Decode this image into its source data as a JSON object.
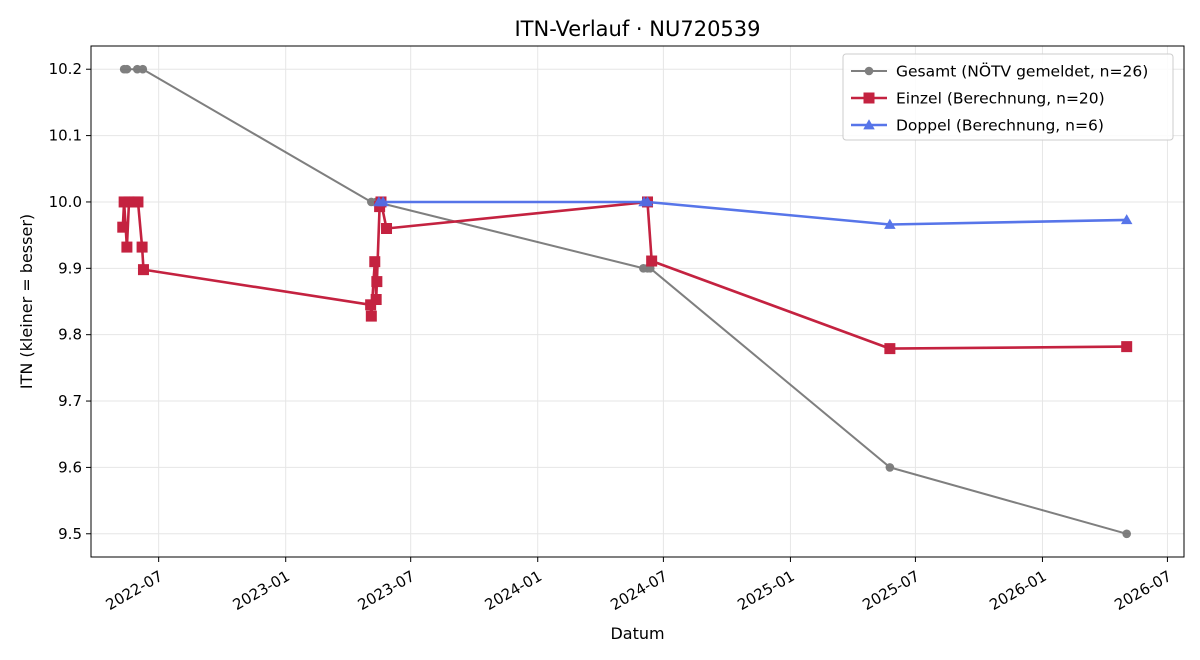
{
  "chart_data": {
    "type": "line",
    "title": "ITN-Verlauf · NU720539",
    "xlabel": "Datum",
    "ylabel": "ITN  (kleiner = besser)",
    "x_axis_type": "date",
    "xlim": [
      "2022-03-25",
      "2026-07-25"
    ],
    "ylim": [
      9.465,
      10.235
    ],
    "x_ticks": [
      "2022-07",
      "2023-01",
      "2023-07",
      "2024-01",
      "2024-07",
      "2025-01",
      "2025-07",
      "2026-01",
      "2026-07"
    ],
    "y_ticks": [
      9.5,
      9.6,
      9.7,
      9.8,
      9.9,
      10.0,
      10.1,
      10.2
    ],
    "grid": true,
    "legend_position": "top-right",
    "series": [
      {
        "name": "Gesamt (NÖTV gemeldet, n=26)",
        "color": "#555555",
        "marker": "circle",
        "points": [
          {
            "x": "2022-05-12",
            "y": 10.2
          },
          {
            "x": "2022-05-16",
            "y": 10.2
          },
          {
            "x": "2022-05-31",
            "y": 10.2
          },
          {
            "x": "2022-06-08",
            "y": 10.2
          },
          {
            "x": "2023-05-05",
            "y": 10.0
          },
          {
            "x": "2023-05-12",
            "y": 10.0
          },
          {
            "x": "2024-06-02",
            "y": 9.9
          },
          {
            "x": "2024-06-08",
            "y": 9.9
          },
          {
            "x": "2024-06-12",
            "y": 9.9
          },
          {
            "x": "2025-05-25",
            "y": 9.6
          },
          {
            "x": "2026-05-03",
            "y": 9.5
          }
        ]
      },
      {
        "name": "Einzel (Berechnung, n=20)",
        "color": "#c42240",
        "marker": "square",
        "points": [
          {
            "x": "2022-05-10",
            "y": 9.962
          },
          {
            "x": "2022-05-12",
            "y": 10.0
          },
          {
            "x": "2022-05-16",
            "y": 9.932
          },
          {
            "x": "2022-05-19",
            "y": 10.0
          },
          {
            "x": "2022-05-27",
            "y": 10.0
          },
          {
            "x": "2022-06-01",
            "y": 10.0
          },
          {
            "x": "2022-06-07",
            "y": 9.932
          },
          {
            "x": "2022-06-09",
            "y": 9.898
          },
          {
            "x": "2023-05-04",
            "y": 9.845
          },
          {
            "x": "2023-05-05",
            "y": 9.828
          },
          {
            "x": "2023-05-10",
            "y": 9.91
          },
          {
            "x": "2023-05-12",
            "y": 9.853
          },
          {
            "x": "2023-05-13",
            "y": 9.88
          },
          {
            "x": "2023-05-17",
            "y": 9.993
          },
          {
            "x": "2023-05-19",
            "y": 10.0
          },
          {
            "x": "2023-05-27",
            "y": 9.96
          },
          {
            "x": "2024-06-08",
            "y": 10.0
          },
          {
            "x": "2024-06-14",
            "y": 9.911
          },
          {
            "x": "2025-05-25",
            "y": 9.779
          },
          {
            "x": "2026-05-03",
            "y": 9.782
          }
        ]
      },
      {
        "name": "Doppel (Berechnung, n=6)",
        "color": "#4f6ee8",
        "marker": "triangle",
        "points": [
          {
            "x": "2023-05-16",
            "y": 10.0
          },
          {
            "x": "2023-05-22",
            "y": 10.0
          },
          {
            "x": "2024-06-03",
            "y": 10.0
          },
          {
            "x": "2024-06-08",
            "y": 10.0
          },
          {
            "x": "2025-05-25",
            "y": 9.966
          },
          {
            "x": "2026-05-03",
            "y": 9.973
          }
        ]
      }
    ]
  }
}
